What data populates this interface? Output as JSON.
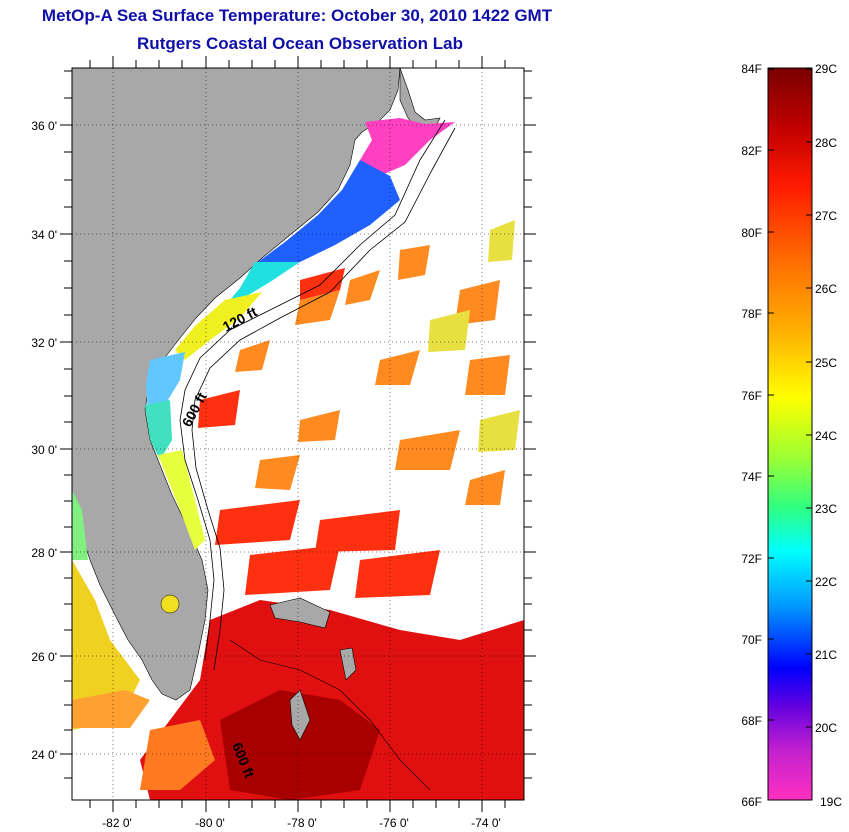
{
  "title": {
    "line1": "MetOp-A Sea Surface Temperature:  October 30, 2010 1422 GMT",
    "line2": "Rutgers Coastal Ocean Observation Lab"
  },
  "map": {
    "lat_ticks": [
      "36 0'",
      "34 0'",
      "32 0'",
      "30 0'",
      "28 0'",
      "26 0'",
      "24 0'"
    ],
    "lon_ticks": [
      "-82 0'",
      "-80 0'",
      "-78 0'",
      "-76 0'",
      "-74 0'"
    ],
    "contour_labels": [
      "120 ft",
      "600 ft",
      "600 ft"
    ],
    "colors": {
      "land": "#a8a8a8",
      "ocean_nodata": "#ffffff"
    }
  },
  "colorbar": {
    "fahrenheit_labels": [
      "84F",
      "82F",
      "80F",
      "78F",
      "76F",
      "74F",
      "72F",
      "70F",
      "68F",
      "66F"
    ],
    "celsius_labels": [
      "29C",
      "28C",
      "27C",
      "26C",
      "25C",
      "24C",
      "23C",
      "22C",
      "21C",
      "20C",
      "19C"
    ],
    "gradient_stops": [
      "#7a0000",
      "#c80000",
      "#ff2000",
      "#ff7a00",
      "#ffc000",
      "#ffff00",
      "#80ff40",
      "#00ffa0",
      "#00ffff",
      "#0090ff",
      "#0000ff",
      "#8000c0",
      "#ff20c0"
    ]
  }
}
